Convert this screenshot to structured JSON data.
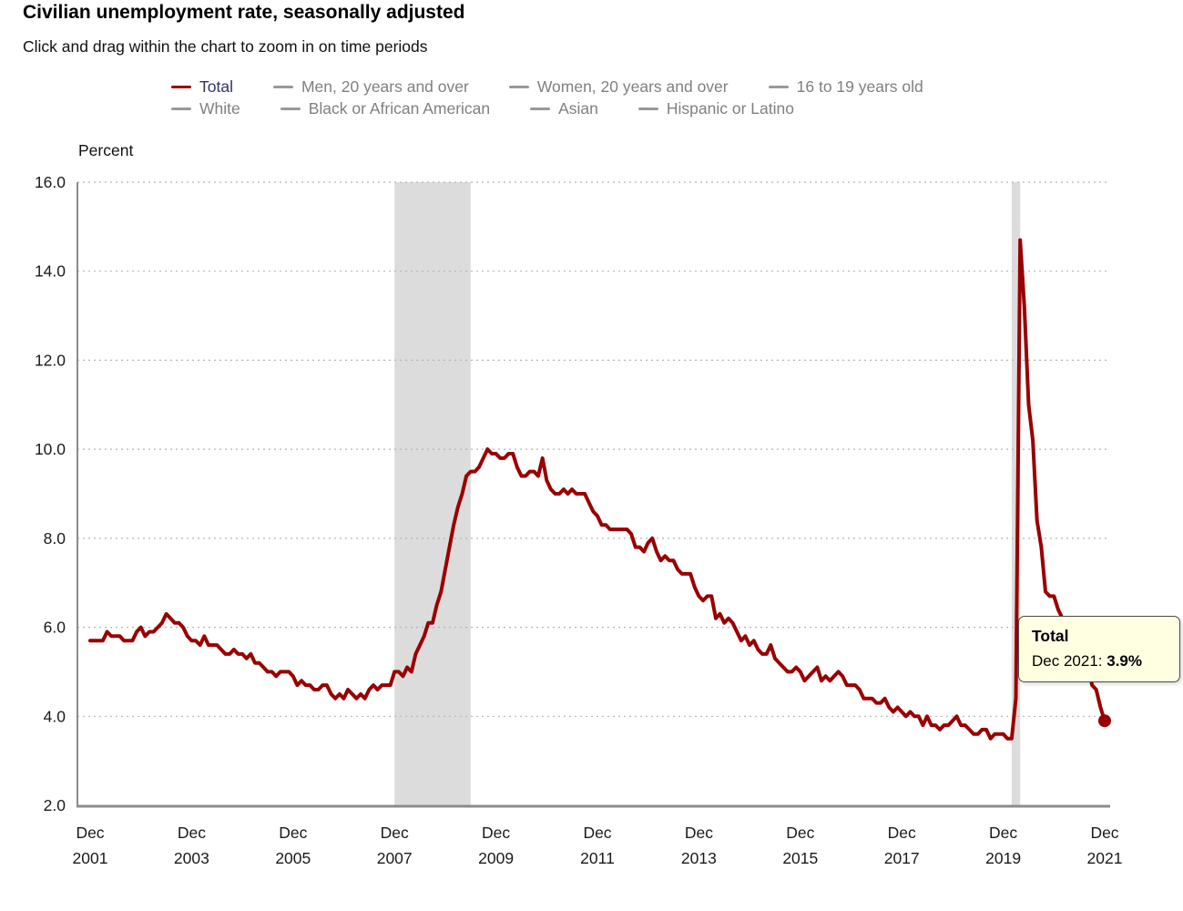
{
  "title": "Civilian unemployment rate, seasonally adjusted",
  "subtitle": "Click and drag within the chart to zoom in on time periods",
  "legend": {
    "rows": [
      [
        {
          "label": "Total",
          "swatch_color": "#990000",
          "text_color": "#333366",
          "active": true
        },
        {
          "label": "Men, 20 years and over",
          "swatch_color": "#999999",
          "text_color": "#808080",
          "active": false
        },
        {
          "label": "Women, 20 years and over",
          "swatch_color": "#999999",
          "text_color": "#808080",
          "active": false
        },
        {
          "label": "16 to 19 years old",
          "swatch_color": "#999999",
          "text_color": "#808080",
          "active": false
        }
      ],
      [
        {
          "label": "White",
          "swatch_color": "#999999",
          "text_color": "#808080",
          "active": false
        },
        {
          "label": "Black or African American",
          "swatch_color": "#999999",
          "text_color": "#808080",
          "active": false
        },
        {
          "label": "Asian",
          "swatch_color": "#999999",
          "text_color": "#808080",
          "active": false
        },
        {
          "label": "Hispanic or Latino",
          "swatch_color": "#999999",
          "text_color": "#808080",
          "active": false
        }
      ]
    ]
  },
  "tooltip": {
    "series": "Total",
    "point_label": "Dec 2021: ",
    "value": "3.9%"
  },
  "chart_data": {
    "type": "line",
    "title": "Civilian unemployment rate, seasonally adjusted",
    "ylabel": "Percent",
    "ylim": [
      2.0,
      16.0
    ],
    "y_ticks": [
      16.0,
      14.0,
      12.0,
      10.0,
      8.0,
      6.0,
      4.0,
      2.0
    ],
    "grid": "dotted",
    "legend_position": "top",
    "x_start": "Dec 2001",
    "x_end": "Dec 2021",
    "frequency": "monthly",
    "x_ticks": [
      {
        "line1": "Dec",
        "line2": "2001",
        "month_index": 0
      },
      {
        "line1": "Dec",
        "line2": "2003",
        "month_index": 24
      },
      {
        "line1": "Dec",
        "line2": "2005",
        "month_index": 48
      },
      {
        "line1": "Dec",
        "line2": "2007",
        "month_index": 72
      },
      {
        "line1": "Dec",
        "line2": "2009",
        "month_index": 96
      },
      {
        "line1": "Dec",
        "line2": "2011",
        "month_index": 120
      },
      {
        "line1": "Dec",
        "line2": "2013",
        "month_index": 144
      },
      {
        "line1": "Dec",
        "line2": "2015",
        "month_index": 168
      },
      {
        "line1": "Dec",
        "line2": "2017",
        "month_index": 192
      },
      {
        "line1": "Dec",
        "line2": "2019",
        "month_index": 216
      },
      {
        "line1": "Dec",
        "line2": "2021",
        "month_index": 240
      }
    ],
    "recession_bands": [
      {
        "from_index": 72,
        "to_index": 90
      },
      {
        "from_index": 218,
        "to_index": 220
      }
    ],
    "recession_color": "#dcdcdc",
    "series": [
      {
        "name": "Total",
        "color": "#990000",
        "values": [
          5.7,
          5.7,
          5.7,
          5.7,
          5.9,
          5.8,
          5.8,
          5.8,
          5.7,
          5.7,
          5.7,
          5.9,
          6.0,
          5.8,
          5.9,
          5.9,
          6.0,
          6.1,
          6.3,
          6.2,
          6.1,
          6.1,
          6.0,
          5.8,
          5.7,
          5.7,
          5.6,
          5.8,
          5.6,
          5.6,
          5.6,
          5.5,
          5.4,
          5.4,
          5.5,
          5.4,
          5.4,
          5.3,
          5.4,
          5.2,
          5.2,
          5.1,
          5.0,
          5.0,
          4.9,
          5.0,
          5.0,
          5.0,
          4.9,
          4.7,
          4.8,
          4.7,
          4.7,
          4.6,
          4.6,
          4.7,
          4.7,
          4.5,
          4.4,
          4.5,
          4.4,
          4.6,
          4.5,
          4.4,
          4.5,
          4.4,
          4.6,
          4.7,
          4.6,
          4.7,
          4.7,
          4.7,
          5.0,
          5.0,
          4.9,
          5.1,
          5.0,
          5.4,
          5.6,
          5.8,
          6.1,
          6.1,
          6.5,
          6.8,
          7.3,
          7.8,
          8.3,
          8.7,
          9.0,
          9.4,
          9.5,
          9.5,
          9.6,
          9.8,
          10.0,
          9.9,
          9.9,
          9.8,
          9.8,
          9.9,
          9.9,
          9.6,
          9.4,
          9.4,
          9.5,
          9.5,
          9.4,
          9.8,
          9.3,
          9.1,
          9.0,
          9.0,
          9.1,
          9.0,
          9.1,
          9.0,
          9.0,
          9.0,
          8.8,
          8.6,
          8.5,
          8.3,
          8.3,
          8.2,
          8.2,
          8.2,
          8.2,
          8.2,
          8.1,
          7.8,
          7.8,
          7.7,
          7.9,
          8.0,
          7.7,
          7.5,
          7.6,
          7.5,
          7.5,
          7.3,
          7.2,
          7.2,
          7.2,
          6.9,
          6.7,
          6.6,
          6.7,
          6.7,
          6.2,
          6.3,
          6.1,
          6.2,
          6.1,
          5.9,
          5.7,
          5.8,
          5.6,
          5.7,
          5.5,
          5.4,
          5.4,
          5.6,
          5.3,
          5.2,
          5.1,
          5.0,
          5.0,
          5.1,
          5.0,
          4.8,
          4.9,
          5.0,
          5.1,
          4.8,
          4.9,
          4.8,
          4.9,
          5.0,
          4.9,
          4.7,
          4.7,
          4.7,
          4.6,
          4.4,
          4.4,
          4.4,
          4.3,
          4.3,
          4.4,
          4.2,
          4.1,
          4.2,
          4.1,
          4.0,
          4.1,
          4.0,
          4.0,
          3.8,
          4.0,
          3.8,
          3.8,
          3.7,
          3.8,
          3.8,
          3.9,
          4.0,
          3.8,
          3.8,
          3.7,
          3.6,
          3.6,
          3.7,
          3.7,
          3.5,
          3.6,
          3.6,
          3.6,
          3.5,
          3.5,
          4.4,
          14.7,
          13.2,
          11.0,
          10.2,
          8.4,
          7.8,
          6.8,
          6.7,
          6.7,
          6.4,
          6.2,
          6.0,
          6.0,
          5.8,
          5.9,
          5.4,
          5.2,
          4.7,
          4.6,
          4.2,
          3.9
        ]
      }
    ],
    "end_point_marker": {
      "index": 240,
      "value": 3.9
    }
  }
}
